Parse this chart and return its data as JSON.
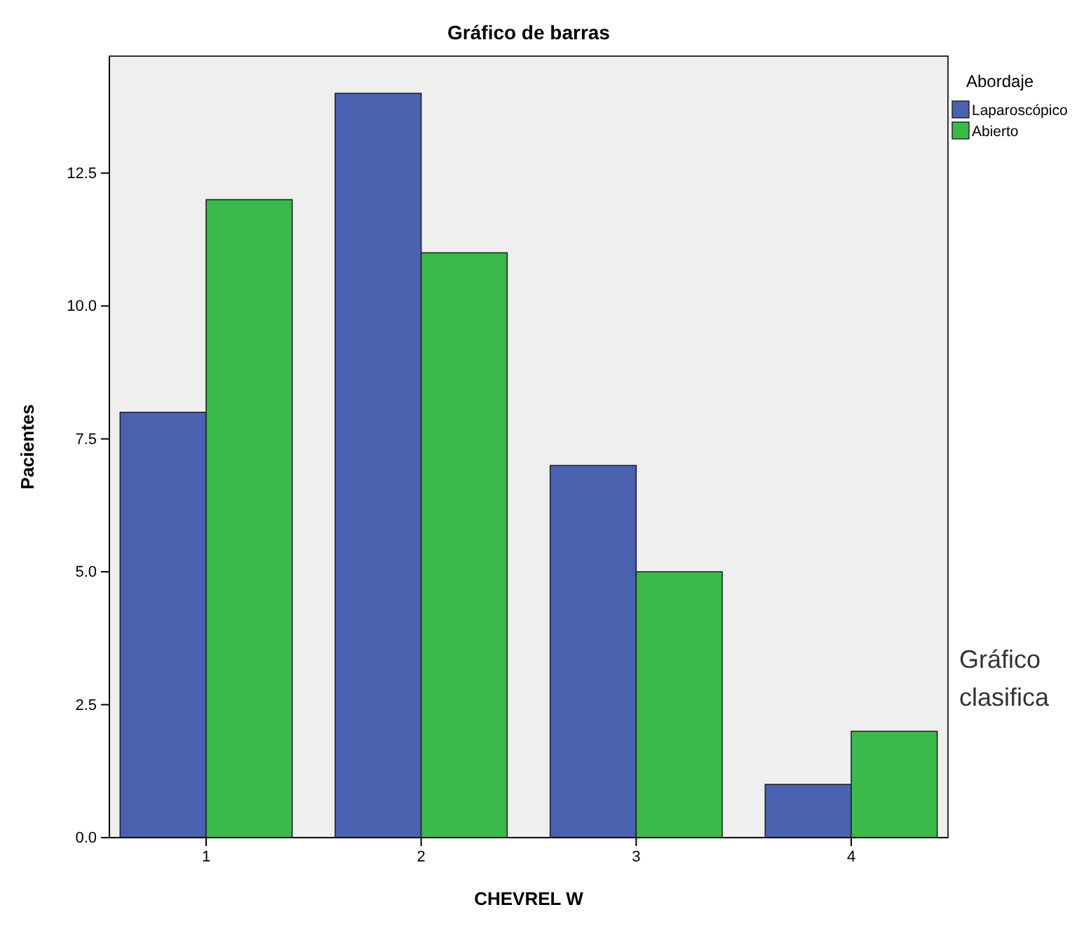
{
  "chart_data": {
    "type": "bar",
    "title": "Gráfico de barras",
    "xlabel": "CHEVREL W",
    "ylabel": "Pacientes",
    "legend_title": "Abordaje",
    "categories": [
      "1",
      "2",
      "3",
      "4"
    ],
    "series": [
      {
        "name": "Laparoscópico",
        "color": "#4a61b0",
        "values": [
          8,
          14,
          7,
          1
        ]
      },
      {
        "name": "Abierto",
        "color": "#3cb94b",
        "values": [
          12,
          11,
          5,
          2
        ]
      }
    ],
    "ylim": [
      0,
      14.7
    ],
    "yticks": [
      {
        "value": 0,
        "label": "0.0"
      },
      {
        "value": 2.5,
        "label": "2.5"
      },
      {
        "value": 5,
        "label": "5.0"
      },
      {
        "value": 7.5,
        "label": "7.5"
      },
      {
        "value": 10,
        "label": "10.0"
      },
      {
        "value": 12.5,
        "label": "12.5"
      }
    ],
    "grid": false,
    "legend": "top right",
    "annotations": [
      "Gráfico",
      "clasifica"
    ]
  }
}
